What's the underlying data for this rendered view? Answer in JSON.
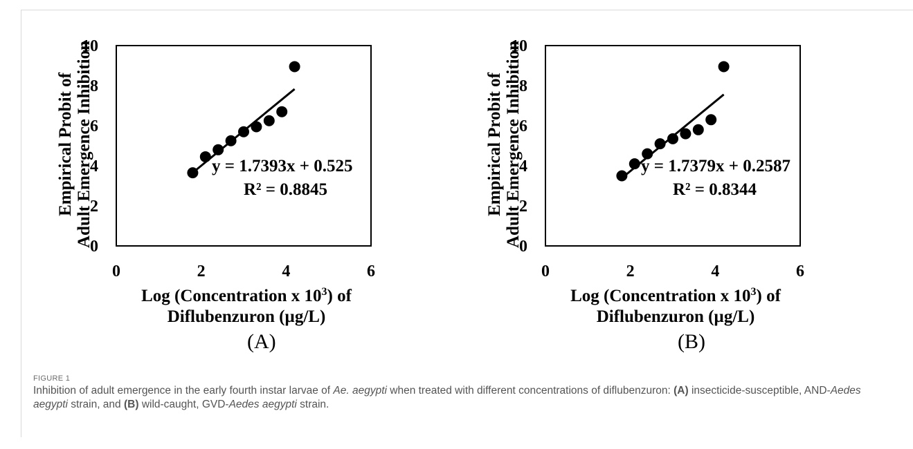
{
  "panels": [
    {
      "label": "(A)",
      "chart_data": {
        "type": "scatter",
        "ylabel_line1": "Empirical Probit of",
        "ylabel_line2": "Adult Emergence Inhibition",
        "xlabel_line1_prefix": "Log (Concentration x 10",
        "xlabel_line1_sup": "3",
        "xlabel_line1_suffix": ") of",
        "xlabel_line2": "Diflubenzuron (µg/L)",
        "xlim": [
          0,
          6
        ],
        "ylim": [
          0,
          10
        ],
        "xticks": [
          "0",
          "2",
          "4",
          "6"
        ],
        "yticks": [
          "0",
          "2",
          "4",
          "6",
          "8",
          "10"
        ],
        "x": [
          1.8,
          2.1,
          2.4,
          2.7,
          3.0,
          3.3,
          3.6,
          3.9,
          4.2
        ],
        "y": [
          3.65,
          4.45,
          4.8,
          5.25,
          5.7,
          5.95,
          6.25,
          6.7,
          8.95
        ],
        "trendline": {
          "slope": 1.7393,
          "intercept": 0.525,
          "x_range": [
            1.8,
            4.2
          ]
        },
        "equation": "y = 1.7393x + 0.525",
        "r2": "R² = 0.8845"
      }
    },
    {
      "label": "(B)",
      "chart_data": {
        "type": "scatter",
        "ylabel_line1": "Empirical Probit of",
        "ylabel_line2": "Adult Emergence Inhibition",
        "xlabel_line1_prefix": "Log (Concentration x 10",
        "xlabel_line1_sup": "3",
        "xlabel_line1_suffix": ") of",
        "xlabel_line2": "Diflubenzuron (µg/L)",
        "xlim": [
          0,
          6
        ],
        "ylim": [
          0,
          10
        ],
        "xticks": [
          "0",
          "2",
          "4",
          "6"
        ],
        "yticks": [
          "0",
          "2",
          "4",
          "6",
          "8",
          "10"
        ],
        "x": [
          1.8,
          2.1,
          2.4,
          2.7,
          3.0,
          3.3,
          3.6,
          3.9,
          4.2
        ],
        "y": [
          3.5,
          4.1,
          4.6,
          5.1,
          5.35,
          5.6,
          5.8,
          6.3,
          8.95
        ],
        "trendline": {
          "slope": 1.7379,
          "intercept": 0.2587,
          "x_range": [
            1.8,
            4.2
          ]
        },
        "equation": "y = 1.7379x + 0.2587",
        "r2": "R² = 0.8344"
      }
    }
  ],
  "figure_label": "FIGURE 1",
  "caption": {
    "t1": "Inhibition of adult emergence in the early fourth instar larvae of ",
    "t2": "Ae. aegypti",
    "t3": " when treated with different concentrations of diflubenzuron: ",
    "t4": "(A)",
    "t5": " insecticide-susceptible, AND-",
    "t6": "Aedes aegypti",
    "t7": " strain, and ",
    "t8": "(B)",
    "t9": " wild-caught, GVD-",
    "t10": "Aedes aegypti",
    "t11": " strain."
  }
}
